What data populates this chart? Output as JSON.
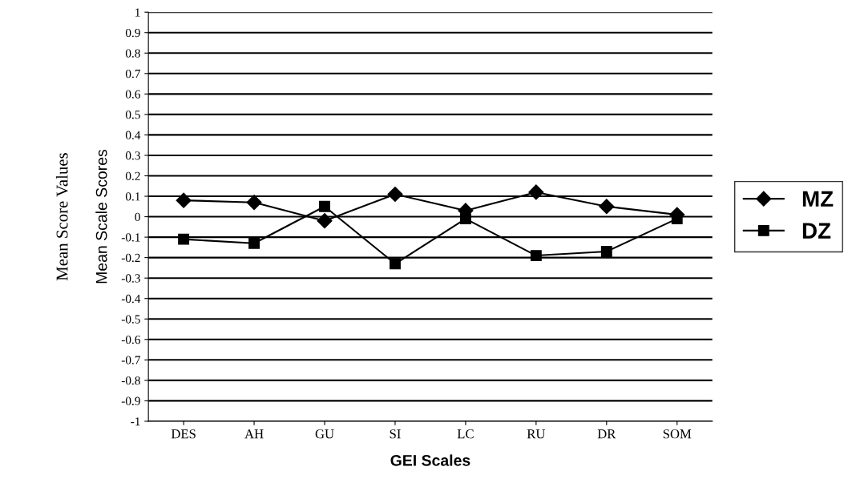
{
  "chart_data": {
    "type": "line",
    "xlabel": "GEI Scales",
    "ylabel": "Mean Scale Scores",
    "annotations": [
      "Mean Score Values"
    ],
    "categories": [
      "DES",
      "AH",
      "GU",
      "SI",
      "LC",
      "RU",
      "DR",
      "SOM"
    ],
    "series": [
      {
        "name": "MZ",
        "color": "#000000",
        "marker": "diamond",
        "values": [
          0.08,
          0.07,
          -0.02,
          0.11,
          0.03,
          0.12,
          0.05,
          0.01
        ]
      },
      {
        "name": "DZ",
        "color": "#000000",
        "marker": "square",
        "values": [
          -0.11,
          -0.13,
          0.05,
          -0.23,
          -0.01,
          -0.19,
          -0.17,
          -0.01
        ]
      }
    ],
    "ylim": [
      -1,
      1
    ],
    "yticks": [
      -1,
      -0.9,
      -0.8,
      -0.7,
      -0.6,
      -0.5,
      -0.4,
      -0.3,
      -0.2,
      -0.1,
      0,
      0.1,
      0.2,
      0.3,
      0.4,
      0.5,
      0.6,
      0.7,
      0.8,
      0.9,
      1
    ],
    "grid": "y",
    "legend": "right",
    "line_style": "solid"
  }
}
